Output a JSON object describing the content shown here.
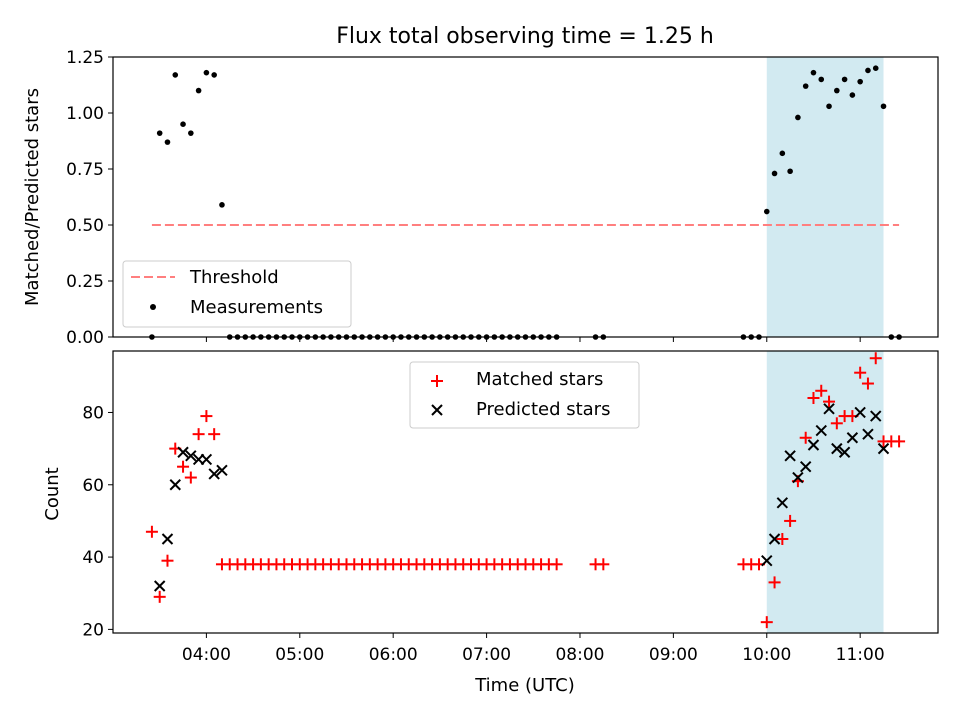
{
  "title": "Flux total observing time = 1.25 h",
  "colors": {
    "threshold": "#ff7f7f",
    "measurement": "#000000",
    "matched": "#ff0000",
    "predicted": "#000000",
    "highlight": "#add8e6"
  },
  "chart_data": [
    {
      "type": "scatter",
      "ylabel": "Matched/Predicted stars",
      "xlabel": "",
      "xlim": [
        "03:00",
        "11:50"
      ],
      "ylim": [
        0,
        1.25
      ],
      "yticks": [
        "0.00",
        "0.25",
        "0.50",
        "0.75",
        "1.00",
        "1.25"
      ],
      "shaded_span": [
        "10:00",
        "11:15"
      ],
      "legend_position": "lower-left",
      "threshold": {
        "name": "Threshold",
        "y": 0.5,
        "x_range": [
          "03:25",
          "11:25"
        ]
      },
      "series": [
        {
          "name": "Measurements",
          "points": [
            [
              "03:25",
              0.0
            ],
            [
              "03:30",
              0.91
            ],
            [
              "03:35",
              0.87
            ],
            [
              "03:40",
              1.17
            ],
            [
              "03:45",
              0.95
            ],
            [
              "03:50",
              0.91
            ],
            [
              "03:55",
              1.1
            ],
            [
              "04:00",
              1.18
            ],
            [
              "04:05",
              1.17
            ],
            [
              "04:10",
              0.59
            ],
            [
              "04:15",
              0
            ],
            [
              "04:20",
              0
            ],
            [
              "04:25",
              0
            ],
            [
              "04:30",
              0
            ],
            [
              "04:35",
              0
            ],
            [
              "04:40",
              0
            ],
            [
              "04:45",
              0
            ],
            [
              "04:50",
              0
            ],
            [
              "04:55",
              0
            ],
            [
              "05:00",
              0
            ],
            [
              "05:05",
              0
            ],
            [
              "05:10",
              0
            ],
            [
              "05:15",
              0
            ],
            [
              "05:20",
              0
            ],
            [
              "05:25",
              0
            ],
            [
              "05:30",
              0
            ],
            [
              "05:35",
              0
            ],
            [
              "05:40",
              0
            ],
            [
              "05:45",
              0
            ],
            [
              "05:50",
              0
            ],
            [
              "05:55",
              0
            ],
            [
              "06:00",
              0
            ],
            [
              "06:05",
              0
            ],
            [
              "06:10",
              0
            ],
            [
              "06:15",
              0
            ],
            [
              "06:20",
              0
            ],
            [
              "06:25",
              0
            ],
            [
              "06:30",
              0
            ],
            [
              "06:35",
              0
            ],
            [
              "06:40",
              0
            ],
            [
              "06:45",
              0
            ],
            [
              "06:50",
              0
            ],
            [
              "06:55",
              0
            ],
            [
              "07:00",
              0
            ],
            [
              "07:05",
              0
            ],
            [
              "07:10",
              0
            ],
            [
              "07:15",
              0
            ],
            [
              "07:20",
              0
            ],
            [
              "07:25",
              0
            ],
            [
              "07:30",
              0
            ],
            [
              "07:35",
              0
            ],
            [
              "07:40",
              0
            ],
            [
              "07:45",
              0
            ],
            [
              "08:10",
              0
            ],
            [
              "08:15",
              0
            ],
            [
              "09:45",
              0
            ],
            [
              "09:50",
              0
            ],
            [
              "09:55",
              0
            ],
            [
              "10:00",
              0.56
            ],
            [
              "10:05",
              0.73
            ],
            [
              "10:10",
              0.82
            ],
            [
              "10:15",
              0.74
            ],
            [
              "10:20",
              0.98
            ],
            [
              "10:25",
              1.12
            ],
            [
              "10:30",
              1.18
            ],
            [
              "10:35",
              1.15
            ],
            [
              "10:40",
              1.03
            ],
            [
              "10:45",
              1.1
            ],
            [
              "10:50",
              1.15
            ],
            [
              "10:55",
              1.08
            ],
            [
              "11:00",
              1.14
            ],
            [
              "11:05",
              1.19
            ],
            [
              "11:10",
              1.2
            ],
            [
              "11:15",
              1.03
            ],
            [
              "11:20",
              0
            ],
            [
              "11:25",
              0
            ]
          ]
        }
      ]
    },
    {
      "type": "scatter",
      "ylabel": "Count",
      "xlabel": "Time (UTC)",
      "xlim": [
        "03:00",
        "11:50"
      ],
      "ylim": [
        19,
        97
      ],
      "yticks": [
        "20",
        "40",
        "60",
        "80"
      ],
      "xticks": [
        "04:00",
        "05:00",
        "06:00",
        "07:00",
        "08:00",
        "09:00",
        "10:00",
        "11:00"
      ],
      "shaded_span": [
        "10:00",
        "11:15"
      ],
      "legend_position": "upper-center",
      "series": [
        {
          "name": "Matched stars",
          "marker": "+",
          "points": [
            [
              "03:25",
              47
            ],
            [
              "03:30",
              29
            ],
            [
              "03:35",
              39
            ],
            [
              "03:40",
              70
            ],
            [
              "03:45",
              65
            ],
            [
              "03:50",
              62
            ],
            [
              "03:55",
              74
            ],
            [
              "04:00",
              79
            ],
            [
              "04:05",
              74
            ],
            [
              "04:10",
              38
            ],
            [
              "04:15",
              38
            ],
            [
              "04:20",
              38
            ],
            [
              "04:25",
              38
            ],
            [
              "04:30",
              38
            ],
            [
              "04:35",
              38
            ],
            [
              "04:40",
              38
            ],
            [
              "04:45",
              38
            ],
            [
              "04:50",
              38
            ],
            [
              "04:55",
              38
            ],
            [
              "05:00",
              38
            ],
            [
              "05:05",
              38
            ],
            [
              "05:10",
              38
            ],
            [
              "05:15",
              38
            ],
            [
              "05:20",
              38
            ],
            [
              "05:25",
              38
            ],
            [
              "05:30",
              38
            ],
            [
              "05:35",
              38
            ],
            [
              "05:40",
              38
            ],
            [
              "05:45",
              38
            ],
            [
              "05:50",
              38
            ],
            [
              "05:55",
              38
            ],
            [
              "06:00",
              38
            ],
            [
              "06:05",
              38
            ],
            [
              "06:10",
              38
            ],
            [
              "06:15",
              38
            ],
            [
              "06:20",
              38
            ],
            [
              "06:25",
              38
            ],
            [
              "06:30",
              38
            ],
            [
              "06:35",
              38
            ],
            [
              "06:40",
              38
            ],
            [
              "06:45",
              38
            ],
            [
              "06:50",
              38
            ],
            [
              "06:55",
              38
            ],
            [
              "07:00",
              38
            ],
            [
              "07:05",
              38
            ],
            [
              "07:10",
              38
            ],
            [
              "07:15",
              38
            ],
            [
              "07:20",
              38
            ],
            [
              "07:25",
              38
            ],
            [
              "07:30",
              38
            ],
            [
              "07:35",
              38
            ],
            [
              "07:40",
              38
            ],
            [
              "07:45",
              38
            ],
            [
              "08:10",
              38
            ],
            [
              "08:15",
              38
            ],
            [
              "09:45",
              38
            ],
            [
              "09:50",
              38
            ],
            [
              "09:55",
              38
            ],
            [
              "10:00",
              22
            ],
            [
              "10:05",
              33
            ],
            [
              "10:10",
              45
            ],
            [
              "10:15",
              50
            ],
            [
              "10:20",
              61
            ],
            [
              "10:25",
              73
            ],
            [
              "10:30",
              84
            ],
            [
              "10:35",
              86
            ],
            [
              "10:40",
              83
            ],
            [
              "10:45",
              77
            ],
            [
              "10:50",
              79
            ],
            [
              "10:55",
              79
            ],
            [
              "11:00",
              91
            ],
            [
              "11:05",
              88
            ],
            [
              "11:10",
              95
            ],
            [
              "11:15",
              72
            ],
            [
              "11:20",
              72
            ],
            [
              "11:25",
              72
            ]
          ]
        },
        {
          "name": "Predicted stars",
          "marker": "x",
          "points": [
            [
              "03:30",
              32
            ],
            [
              "03:35",
              45
            ],
            [
              "03:40",
              60
            ],
            [
              "03:45",
              69
            ],
            [
              "03:50",
              68
            ],
            [
              "03:55",
              67
            ],
            [
              "04:00",
              67
            ],
            [
              "04:05",
              63
            ],
            [
              "04:10",
              64
            ],
            [
              "10:00",
              39
            ],
            [
              "10:05",
              45
            ],
            [
              "10:10",
              55
            ],
            [
              "10:15",
              68
            ],
            [
              "10:20",
              62
            ],
            [
              "10:25",
              65
            ],
            [
              "10:30",
              71
            ],
            [
              "10:35",
              75
            ],
            [
              "10:40",
              81
            ],
            [
              "10:45",
              70
            ],
            [
              "10:50",
              69
            ],
            [
              "10:55",
              73
            ],
            [
              "11:00",
              80
            ],
            [
              "11:05",
              74
            ],
            [
              "11:10",
              79
            ],
            [
              "11:15",
              70
            ]
          ]
        }
      ]
    }
  ]
}
